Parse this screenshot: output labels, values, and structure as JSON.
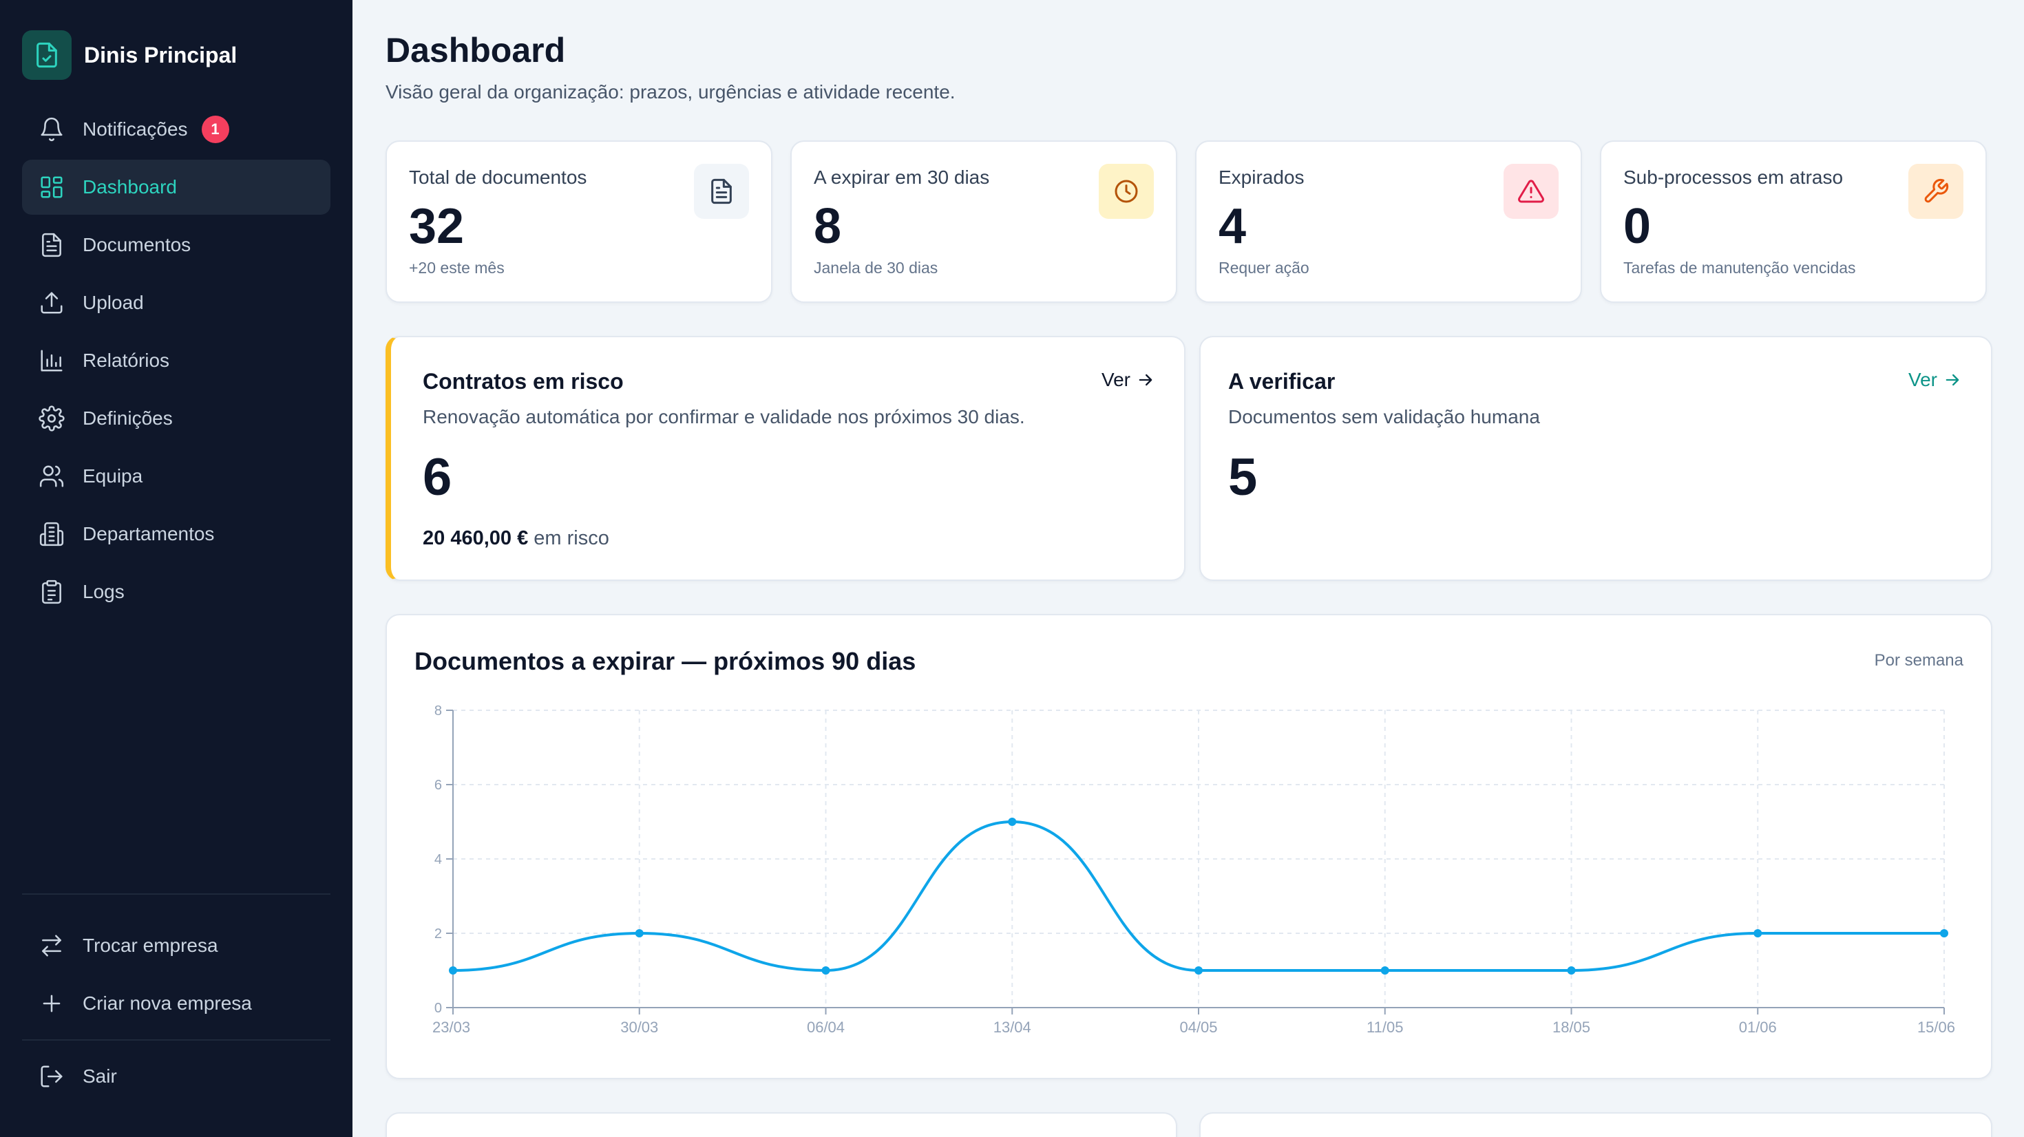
{
  "sidebar": {
    "company": "Dinis Principal",
    "nav": [
      {
        "label": "Notificações",
        "icon": "bell-icon",
        "badge": "1"
      },
      {
        "label": "Dashboard",
        "icon": "dashboard-grid-icon",
        "active": true
      },
      {
        "label": "Documentos",
        "icon": "document-icon"
      },
      {
        "label": "Upload",
        "icon": "upload-icon"
      },
      {
        "label": "Relatórios",
        "icon": "bar-chart-icon"
      },
      {
        "label": "Definições",
        "icon": "gear-icon"
      },
      {
        "label": "Equipa",
        "icon": "users-icon"
      },
      {
        "label": "Departamentos",
        "icon": "building-icon"
      },
      {
        "label": "Logs",
        "icon": "clipboard-icon"
      }
    ],
    "switch_company": "Trocar empresa",
    "create_company": "Criar nova empresa",
    "logout": "Sair"
  },
  "header": {
    "title": "Dashboard",
    "subtitle": "Visão geral da organização: prazos, urgências e atividade recente."
  },
  "stats": [
    {
      "label": "Total de documentos",
      "value": "32",
      "sub": "+20 este mês",
      "icon": "document-icon"
    },
    {
      "label": "A expirar em 30 dias",
      "value": "8",
      "sub": "Janela de 30 dias",
      "icon": "clock-icon"
    },
    {
      "label": "Expirados",
      "value": "4",
      "sub": "Requer ação",
      "icon": "warning-triangle-icon"
    },
    {
      "label": "Sub-processos em atraso",
      "value": "0",
      "sub": "Tarefas de manutenção vencidas",
      "icon": "wrench-icon"
    }
  ],
  "risk": {
    "title": "Contratos em risco",
    "description": "Renovação automática por confirmar e validade nos próximos 30 dias.",
    "value": "6",
    "amount": "20 460,00 €",
    "amount_suffix": " em risco",
    "link": "Ver"
  },
  "verify": {
    "title": "A verificar",
    "description": "Documentos sem validação humana",
    "value": "5",
    "link": "Ver"
  },
  "colors": {
    "accent": "#0d9488",
    "line": "#0ea5e9",
    "risk_border": "#fbbf24",
    "badge": "#f43f5e"
  },
  "chart_data": {
    "type": "line",
    "title": "Documentos a expirar — próximos 90 dias",
    "period": "Por semana",
    "categories": [
      "23/03",
      "30/03",
      "06/04",
      "13/04",
      "04/05",
      "11/05",
      "18/05",
      "01/06",
      "15/06"
    ],
    "values": [
      1,
      2,
      1,
      5,
      1,
      1,
      1,
      2,
      2
    ],
    "ylim": [
      0,
      8
    ],
    "yticks": [
      0,
      2,
      4,
      6,
      8
    ],
    "grid": true,
    "xlabel": "",
    "ylabel": ""
  }
}
